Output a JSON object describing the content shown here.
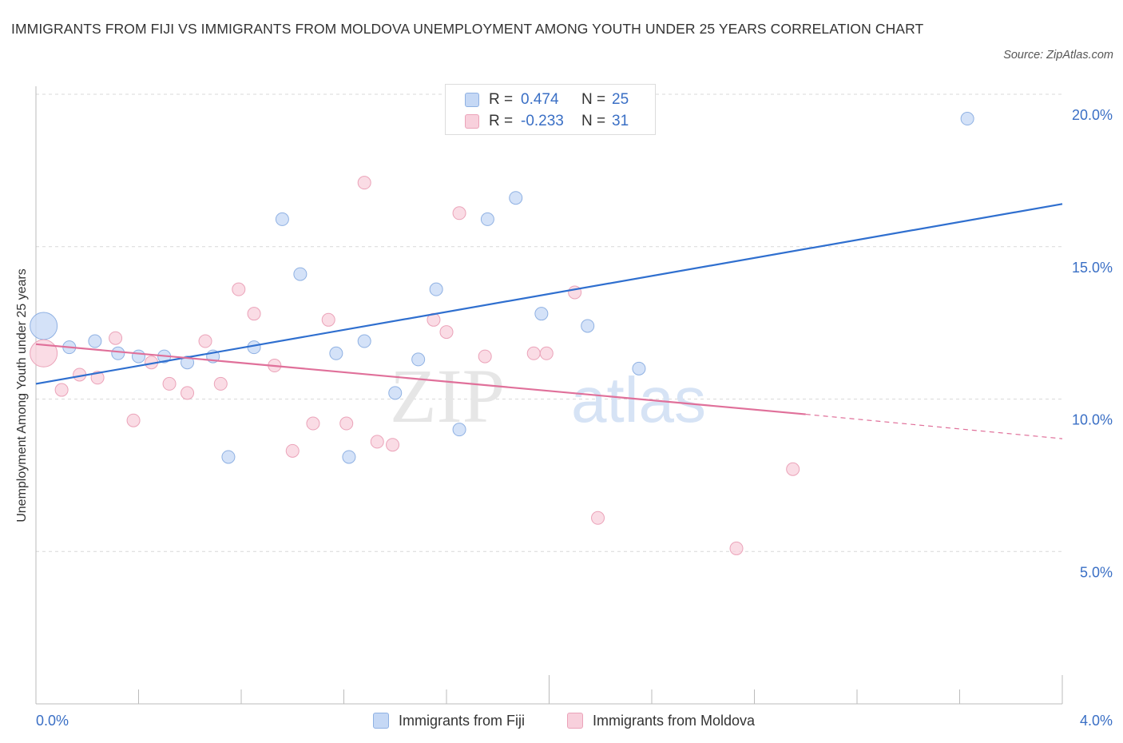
{
  "title": "IMMIGRANTS FROM FIJI VS IMMIGRANTS FROM MOLDOVA UNEMPLOYMENT AMONG YOUTH UNDER 25 YEARS CORRELATION CHART",
  "source": "Source: ZipAtlas.com",
  "watermark": {
    "zip": "ZIP",
    "atlas": "atlas"
  },
  "legend": {
    "fiji": {
      "r_label": "R =",
      "r_value": "0.474",
      "n_label": "N =",
      "n_value": "25"
    },
    "moldova": {
      "r_label": "R =",
      "r_value": "-0.233",
      "n_label": "N =",
      "n_value": "31"
    }
  },
  "colors": {
    "fiji_fill": "#c5d8f5",
    "fiji_stroke": "#8fb1e3",
    "fiji_line": "#2f6fcf",
    "moldova_fill": "#f8d0dc",
    "moldova_stroke": "#eba3b9",
    "moldova_line": "#e0709a",
    "grid": "#d9d9d9",
    "tick_text": "#3a6fc5"
  },
  "chart_data": {
    "type": "scatter",
    "title": "IMMIGRANTS FROM FIJI VS IMMIGRANTS FROM MOLDOVA UNEMPLOYMENT AMONG YOUTH UNDER 25 YEARS CORRELATION CHART",
    "xlabel": "",
    "ylabel": "Unemployment Among Youth under 25 years",
    "xlim": [
      0,
      4.0
    ],
    "ylim": [
      0,
      20.0
    ],
    "x_ticks": [
      "0.0%",
      "4.0%"
    ],
    "y_ticks": [
      {
        "value": 5,
        "label": "5.0%"
      },
      {
        "value": 10,
        "label": "10.0%"
      },
      {
        "value": 15,
        "label": "15.0%"
      },
      {
        "value": 20,
        "label": "20.0%"
      }
    ],
    "grid": true,
    "legend_position": "top-center and bottom",
    "series": [
      {
        "name": "Immigrants from Fiji",
        "points": [
          [
            0.03,
            12.4,
            3
          ],
          [
            0.13,
            11.7,
            1
          ],
          [
            0.23,
            11.9,
            1
          ],
          [
            0.32,
            11.5,
            1
          ],
          [
            0.4,
            11.4,
            1
          ],
          [
            0.5,
            11.4,
            1
          ],
          [
            0.59,
            11.2,
            1
          ],
          [
            0.69,
            11.4,
            1
          ],
          [
            0.75,
            8.1,
            1
          ],
          [
            0.85,
            11.7,
            1
          ],
          [
            0.96,
            15.9,
            1
          ],
          [
            1.03,
            14.1,
            1
          ],
          [
            1.17,
            11.5,
            1
          ],
          [
            1.22,
            8.1,
            1
          ],
          [
            1.28,
            11.9,
            1
          ],
          [
            1.4,
            10.2,
            1
          ],
          [
            1.49,
            11.3,
            1
          ],
          [
            1.56,
            13.6,
            1
          ],
          [
            1.65,
            9.0,
            1
          ],
          [
            1.76,
            15.9,
            1
          ],
          [
            1.87,
            16.6,
            1
          ],
          [
            1.97,
            12.8,
            1
          ],
          [
            2.15,
            12.4,
            1
          ],
          [
            2.35,
            11.0,
            1
          ],
          [
            3.63,
            19.2,
            1
          ]
        ],
        "trend": {
          "x": [
            0.0,
            4.0
          ],
          "y": [
            10.5,
            16.4
          ]
        }
      },
      {
        "name": "Immigrants from Moldova",
        "points": [
          [
            0.03,
            11.5,
            3
          ],
          [
            0.1,
            10.3,
            1
          ],
          [
            0.17,
            10.8,
            1
          ],
          [
            0.24,
            10.7,
            1
          ],
          [
            0.31,
            12.0,
            1
          ],
          [
            0.38,
            9.3,
            1
          ],
          [
            0.45,
            11.2,
            1
          ],
          [
            0.52,
            10.5,
            1
          ],
          [
            0.59,
            10.2,
            1
          ],
          [
            0.66,
            11.9,
            1
          ],
          [
            0.72,
            10.5,
            1
          ],
          [
            0.79,
            13.6,
            1
          ],
          [
            0.85,
            12.8,
            1
          ],
          [
            0.93,
            11.1,
            1
          ],
          [
            1.0,
            8.3,
            1
          ],
          [
            1.08,
            9.2,
            1
          ],
          [
            1.14,
            12.6,
            1
          ],
          [
            1.21,
            9.2,
            1
          ],
          [
            1.28,
            17.1,
            1
          ],
          [
            1.33,
            8.6,
            1
          ],
          [
            1.39,
            8.5,
            1
          ],
          [
            1.55,
            12.6,
            1
          ],
          [
            1.6,
            12.2,
            1
          ],
          [
            1.65,
            16.1,
            1
          ],
          [
            1.75,
            11.4,
            1
          ],
          [
            1.94,
            11.5,
            1
          ],
          [
            1.99,
            11.5,
            1
          ],
          [
            2.1,
            13.5,
            1
          ],
          [
            2.19,
            6.1,
            1
          ],
          [
            2.73,
            5.1,
            1
          ],
          [
            2.95,
            7.7,
            1
          ]
        ],
        "trend": {
          "x": [
            0.0,
            3.0
          ],
          "y": [
            11.8,
            9.5
          ]
        },
        "trend_dashed": {
          "x": [
            3.0,
            4.0
          ],
          "y": [
            9.5,
            8.7
          ]
        }
      }
    ]
  }
}
